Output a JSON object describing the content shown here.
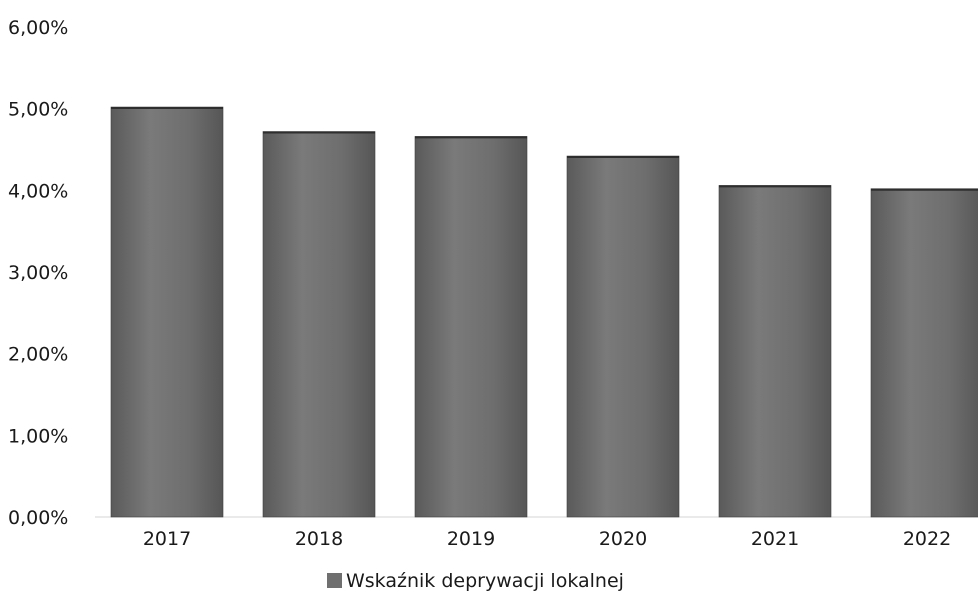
{
  "chart_data": {
    "type": "bar",
    "categories": [
      "2017",
      "2018",
      "2019",
      "2020",
      "2021",
      "2022"
    ],
    "series": [
      {
        "name": "Wskaźnik deprywacji lokalnej",
        "values": [
          5.02,
          4.72,
          4.66,
          4.42,
          4.06,
          4.02
        ]
      }
    ],
    "yticks": [
      "0,00%",
      "1,00%",
      "2,00%",
      "3,00%",
      "4,00%",
      "5,00%",
      "6,00%"
    ],
    "ylim": [
      0,
      6
    ],
    "xlabel": "",
    "ylabel": "",
    "grid": false,
    "legend": "bottom-center",
    "bar_color": "#6f6f6f"
  }
}
